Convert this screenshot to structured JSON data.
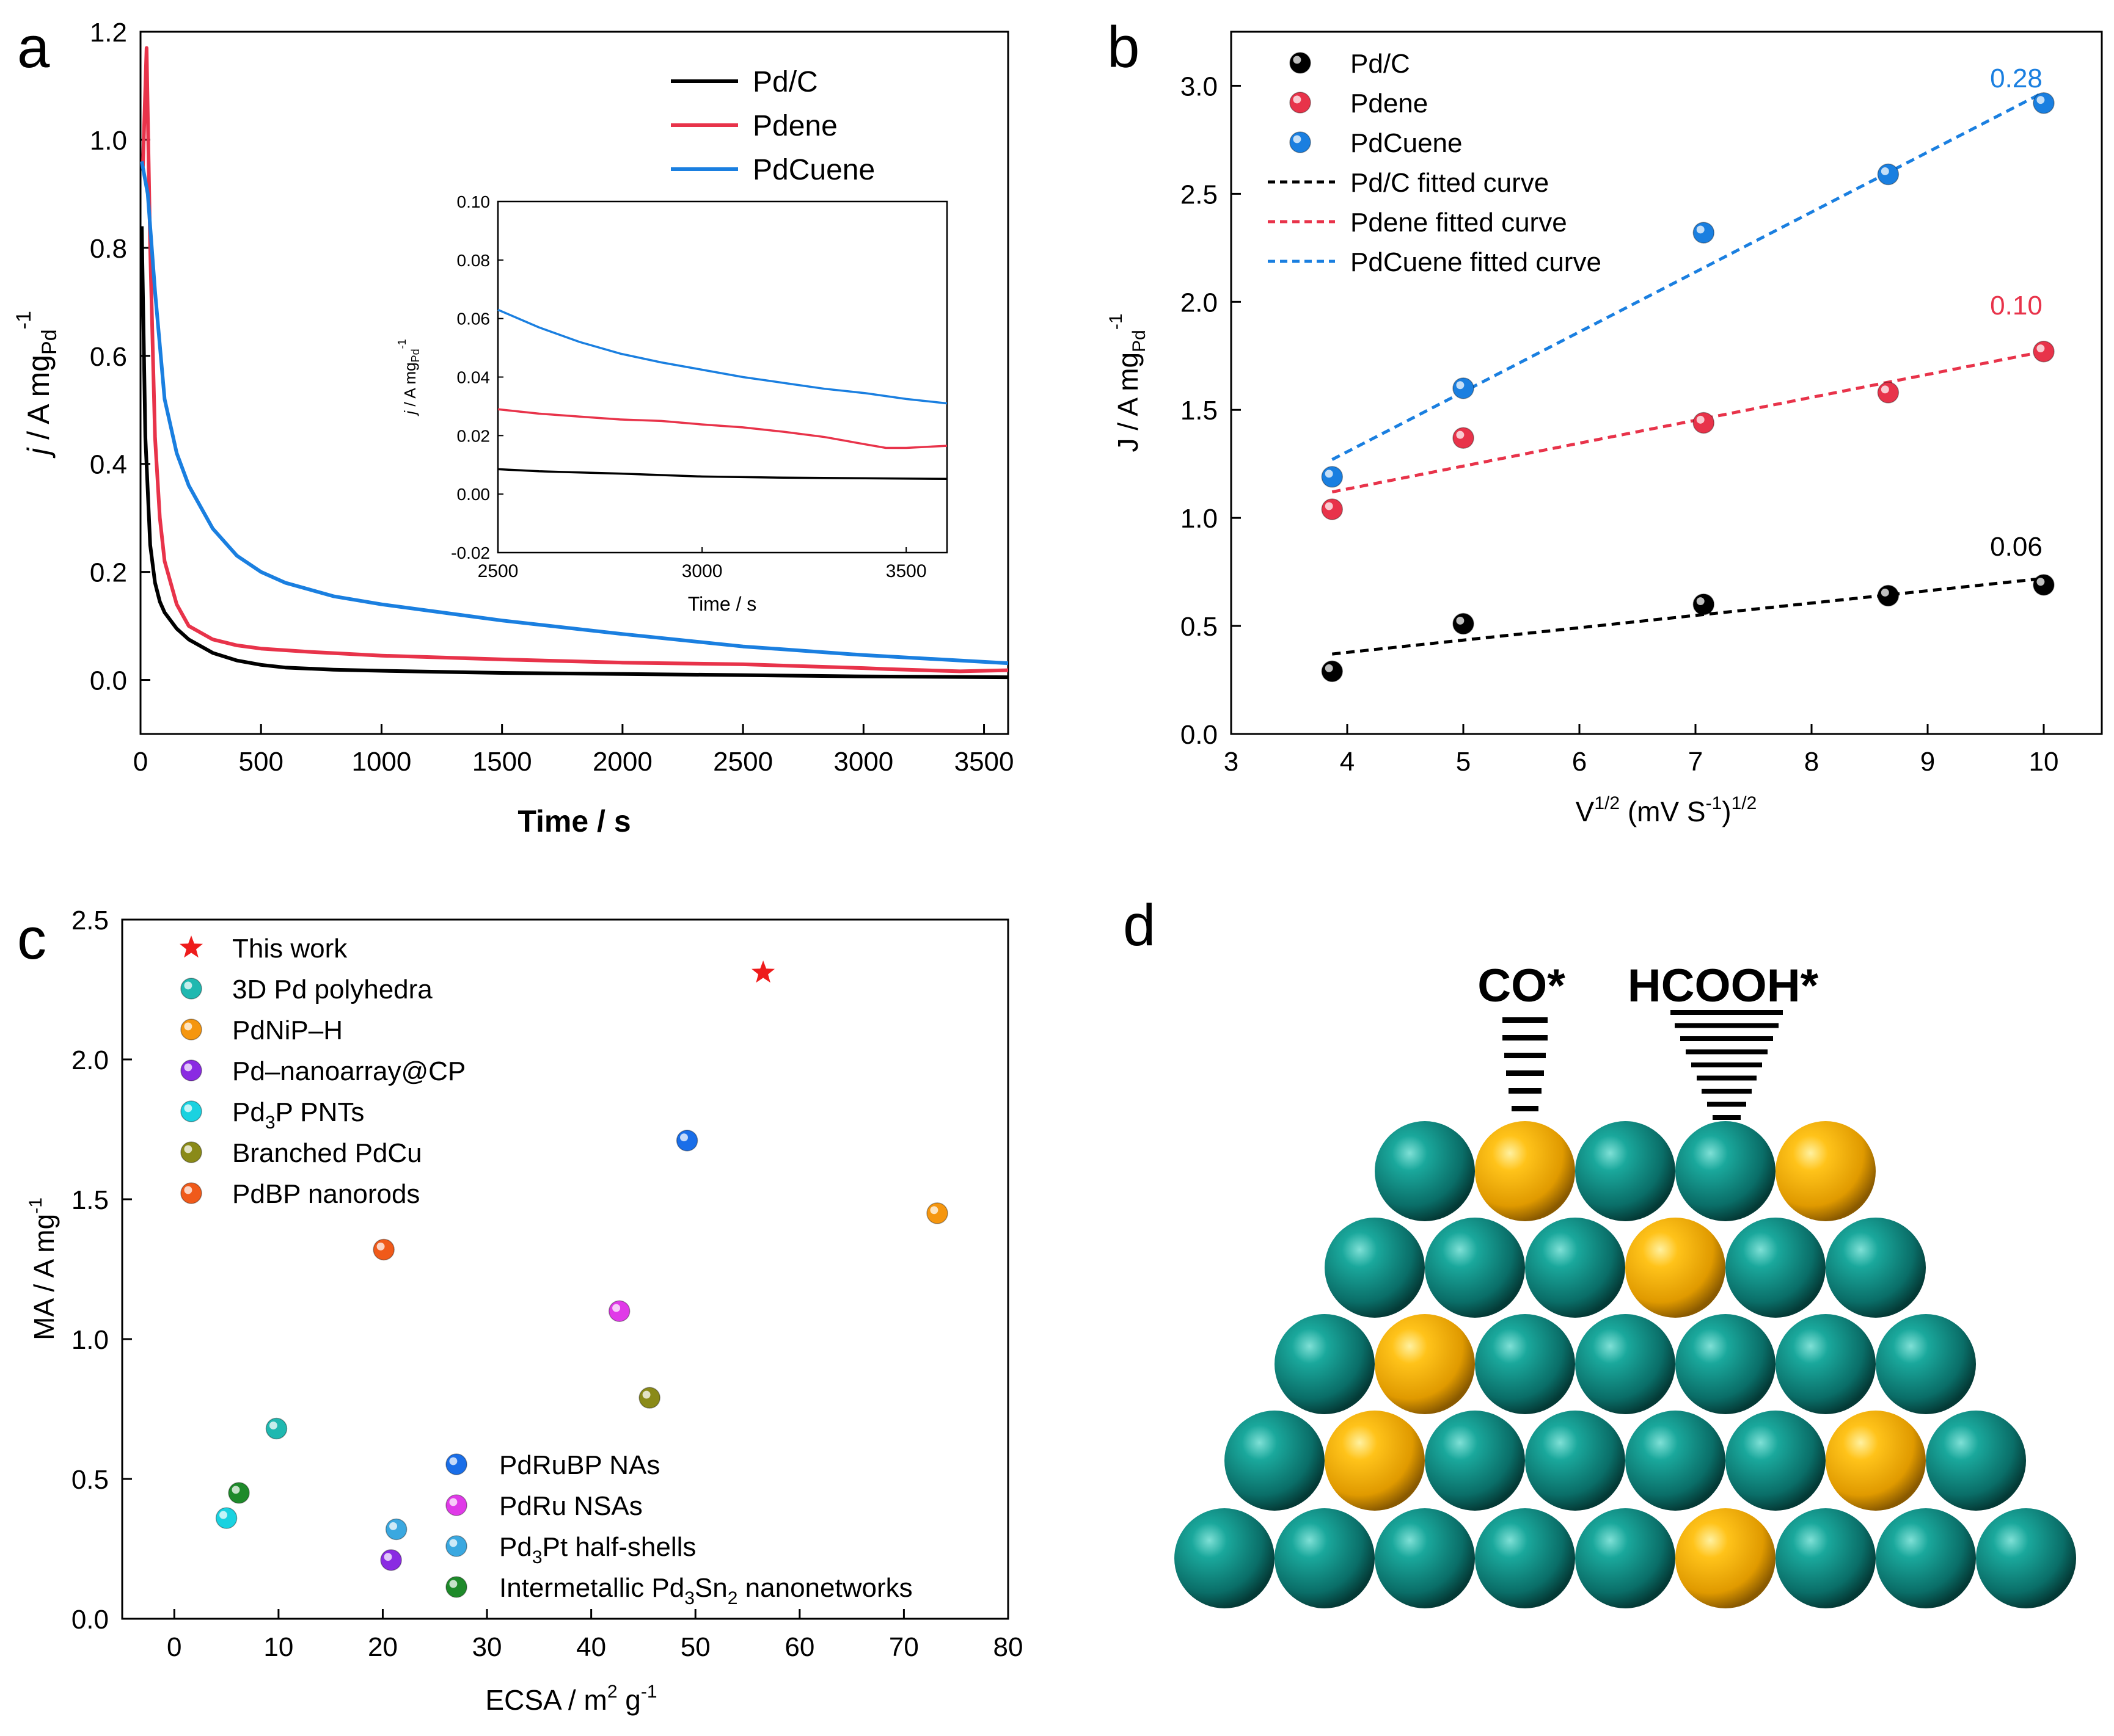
{
  "colors": {
    "black": "#000000",
    "red": "#e8334a",
    "blue": "#1a7fe0",
    "teal": "#0e7f7f",
    "gold": "#f0a800"
  },
  "chart_data": [
    {
      "id": "a",
      "panel_label": "a",
      "type": "line",
      "xlabel": "Time / s",
      "ylabel": {
        "pre": "j",
        "main": " / A mg",
        "sub": "Pd",
        "sup": "-1"
      },
      "xlim": [
        0,
        3600
      ],
      "ylim": [
        -0.1,
        1.2
      ],
      "xticks": [
        0,
        500,
        1000,
        1500,
        2000,
        2500,
        3000,
        3500
      ],
      "yticks": [
        0.0,
        0.2,
        0.4,
        0.6,
        0.8,
        1.0,
        1.2
      ],
      "ytick_labels": [
        "0.0",
        "0.2",
        "0.4",
        "0.6",
        "0.8",
        "1.0",
        "1.2"
      ],
      "legend": {
        "position": "top-right"
      },
      "series": [
        {
          "name": "Pd/C",
          "color": "#000000",
          "x": [
            5,
            20,
            40,
            60,
            80,
            100,
            150,
            200,
            300,
            400,
            500,
            600,
            800,
            1000,
            1500,
            2000,
            2500,
            2800,
            3000,
            3600
          ],
          "y": [
            0.84,
            0.45,
            0.25,
            0.18,
            0.145,
            0.125,
            0.095,
            0.075,
            0.05,
            0.036,
            0.028,
            0.023,
            0.019,
            0.017,
            0.013,
            0.011,
            0.009,
            0.0075,
            0.0065,
            0.005
          ]
        },
        {
          "name": "Pdene",
          "color": "#e8334a",
          "x": [
            10,
            25,
            40,
            60,
            80,
            100,
            150,
            200,
            300,
            400,
            500,
            700,
            1000,
            1500,
            2000,
            2500,
            3000,
            3100,
            3400,
            3600
          ],
          "y": [
            0.95,
            1.17,
            0.8,
            0.45,
            0.3,
            0.22,
            0.14,
            0.1,
            0.075,
            0.064,
            0.058,
            0.052,
            0.045,
            0.038,
            0.032,
            0.029,
            0.022,
            0.02,
            0.016,
            0.018
          ]
        },
        {
          "name": "PdCuene",
          "color": "#1a7fe0",
          "x": [
            5,
            30,
            60,
            100,
            150,
            200,
            250,
            300,
            400,
            500,
            600,
            800,
            1000,
            1500,
            2000,
            2500,
            3000,
            3600
          ],
          "y": [
            0.96,
            0.9,
            0.72,
            0.52,
            0.42,
            0.36,
            0.32,
            0.28,
            0.23,
            0.2,
            0.18,
            0.155,
            0.14,
            0.11,
            0.085,
            0.062,
            0.046,
            0.031
          ]
        }
      ],
      "inset": {
        "xlabel": "Time / s",
        "ylabel": {
          "pre": "j",
          "main": " / A mg",
          "sub": "Pd",
          "sup": "-1"
        },
        "xlim": [
          2500,
          3600
        ],
        "ylim": [
          -0.02,
          0.1
        ],
        "xticks": [
          2500,
          3000,
          3500
        ],
        "yticks": [
          -0.02,
          0.0,
          0.02,
          0.04,
          0.06,
          0.08,
          0.1
        ],
        "ytick_labels": [
          "-0.02",
          "0.00",
          "0.02",
          "0.04",
          "0.06",
          "0.08",
          "0.10"
        ],
        "series": [
          {
            "name": "Pd/C",
            "color": "#000000",
            "x": [
              2500,
              2600,
              2700,
              2800,
              2900,
              3000,
              3200,
              3400,
              3600
            ],
            "y": [
              0.0085,
              0.0078,
              0.0074,
              0.007,
              0.0065,
              0.006,
              0.0056,
              0.0054,
              0.0052
            ]
          },
          {
            "name": "Pdene",
            "color": "#e8334a",
            "x": [
              2500,
              2600,
              2700,
              2800,
              2900,
              3000,
              3100,
              3200,
              3300,
              3400,
              3450,
              3500,
              3600
            ],
            "y": [
              0.029,
              0.0275,
              0.0265,
              0.0255,
              0.025,
              0.0238,
              0.0228,
              0.0213,
              0.0195,
              0.017,
              0.0158,
              0.0158,
              0.0165
            ]
          },
          {
            "name": "PdCuene",
            "color": "#1a7fe0",
            "x": [
              2500,
              2600,
              2700,
              2800,
              2900,
              3000,
              3100,
              3200,
              3300,
              3400,
              3500,
              3600
            ],
            "y": [
              0.063,
              0.057,
              0.052,
              0.048,
              0.045,
              0.0425,
              0.04,
              0.038,
              0.036,
              0.0345,
              0.0325,
              0.031
            ]
          }
        ]
      }
    },
    {
      "id": "b",
      "panel_label": "b",
      "type": "scatter",
      "xlabel": {
        "main": "V",
        "sup": "1/2",
        "mid": " (mV S",
        "sup2": "-1",
        "end": ")",
        "sup3": "1/2"
      },
      "ylabel": {
        "main": "J / A mg",
        "sub": "Pd",
        "sup": "-1"
      },
      "xlim": [
        3,
        10.5
      ],
      "ylim": [
        0,
        3.25
      ],
      "xticks": [
        3,
        4,
        5,
        6,
        7,
        8,
        9,
        10
      ],
      "yticks": [
        0.0,
        0.5,
        1.0,
        1.5,
        2.0,
        2.5,
        3.0
      ],
      "ytick_labels": [
        "0.0",
        "0.5",
        "1.0",
        "1.5",
        "2.0",
        "2.5",
        "3.0"
      ],
      "legend": {
        "position": "top-left"
      },
      "x": [
        3.87,
        5.0,
        7.07,
        8.66,
        10.0
      ],
      "series": [
        {
          "name": "Pd/C",
          "fit_name": "Pd/C fitted curve",
          "color": "#000000",
          "y": [
            0.29,
            0.51,
            0.6,
            0.64,
            0.69
          ],
          "fit": [
            0.37,
            0.72
          ],
          "slope_label": "0.06"
        },
        {
          "name": "Pdene",
          "fit_name": "Pdene fitted curve",
          "color": "#e8334a",
          "y": [
            1.04,
            1.37,
            1.44,
            1.58,
            1.77
          ],
          "fit": [
            1.12,
            1.77
          ],
          "slope_label": "0.10"
        },
        {
          "name": "PdCuene",
          "fit_name": "PdCuene fitted curve",
          "color": "#1a7fe0",
          "y": [
            1.19,
            1.6,
            2.32,
            2.59,
            2.92
          ],
          "fit": [
            1.27,
            2.97
          ],
          "slope_label": "0.28"
        }
      ]
    },
    {
      "id": "c",
      "panel_label": "c",
      "type": "scatter",
      "xlabel": {
        "main": "ECSA / m",
        "sup": "2",
        "end": " g",
        "sup2": "-1"
      },
      "ylabel": {
        "main": "MA / A mg",
        "sup": "-1"
      },
      "xlim": [
        -5,
        80
      ],
      "ylim": [
        0,
        2.5
      ],
      "xticks": [
        0,
        10,
        20,
        30,
        40,
        50,
        60,
        70,
        80
      ],
      "yticks": [
        0.0,
        0.5,
        1.0,
        1.5,
        2.0,
        2.5
      ],
      "ytick_labels": [
        "0.0",
        "0.5",
        "1.0",
        "1.5",
        "2.0",
        "2.5"
      ],
      "legend": {
        "position": "top-left and bottom-center"
      },
      "points": [
        {
          "name": "This work",
          "x": 56.5,
          "y": 2.31,
          "color": "#ee1c1c",
          "marker": "star"
        },
        {
          "name": "3D Pd polyhedra",
          "x": 9.8,
          "y": 0.68,
          "color": "#1fb8b0",
          "marker": "ball"
        },
        {
          "name": "PdNiP–H",
          "x": 73.2,
          "y": 1.45,
          "color": "#f5960f",
          "marker": "ball"
        },
        {
          "name": "Pd–nanoarray@CP",
          "x": 20.8,
          "y": 0.21,
          "color": "#8a2be2",
          "marker": "ball"
        },
        {
          "name": "Pd3P PNTs",
          "x": 5.0,
          "y": 0.36,
          "color": "#1ad2e0",
          "marker": "ball"
        },
        {
          "name": "Branched PdCu",
          "x": 45.6,
          "y": 0.79,
          "color": "#8a8a18",
          "marker": "ball"
        },
        {
          "name": "PdBP nanorods",
          "x": 20.1,
          "y": 1.32,
          "color": "#f05a1a",
          "marker": "ball"
        },
        {
          "name": "PdRuBP NAs",
          "x": 49.2,
          "y": 1.71,
          "color": "#1a6ee8",
          "marker": "ball"
        },
        {
          "name": "PdRu NSAs",
          "x": 42.7,
          "y": 1.1,
          "color": "#e03ae8",
          "marker": "ball"
        },
        {
          "name": "Pd3Pt half-shells",
          "x": 21.3,
          "y": 0.32,
          "color": "#3aa8e0",
          "marker": "ball"
        },
        {
          "name": "Intermetallic Pd3Sn2 nanonetworks",
          "x": 6.2,
          "y": 0.45,
          "color": "#1e8a2a",
          "marker": "ball"
        }
      ],
      "legend_entries": [
        {
          "text": "This work",
          "parts": [
            [
              "This work",
              ""
            ]
          ]
        },
        {
          "text": "3D Pd polyhedra",
          "parts": [
            [
              "3D Pd polyhedra",
              ""
            ]
          ]
        },
        {
          "text": "PdNiP–H",
          "parts": [
            [
              "PdNiP",
              ""
            ],
            [
              "–",
              ""
            ],
            [
              "H",
              ""
            ]
          ]
        },
        {
          "text": "Pd–nanoarray@CP",
          "parts": [
            [
              "Pd",
              ""
            ],
            [
              "–",
              ""
            ],
            [
              "nanoarray@CP",
              ""
            ]
          ]
        },
        {
          "text": "Pd3P PNTs",
          "parts": [
            [
              "Pd",
              ""
            ],
            [
              "3",
              "sub"
            ],
            [
              "P PNTs",
              ""
            ]
          ]
        },
        {
          "text": "Branched PdCu",
          "parts": [
            [
              "Branched PdCu",
              ""
            ]
          ]
        },
        {
          "text": "PdBP nanorods",
          "parts": [
            [
              "PdBP nanorods",
              ""
            ]
          ]
        },
        {
          "text": "PdRuBP NAs",
          "parts": [
            [
              "PdRuBP NAs",
              ""
            ]
          ]
        },
        {
          "text": "PdRu NSAs",
          "parts": [
            [
              "PdRu NSAs",
              ""
            ]
          ]
        },
        {
          "text": "Pd3Pt half-shells",
          "parts": [
            [
              "Pd",
              ""
            ],
            [
              "3",
              "sub"
            ],
            [
              "Pt half-shells",
              ""
            ]
          ]
        },
        {
          "text": "Intermetallic Pd3Sn2 nanonetworks",
          "parts": [
            [
              "Intermetallic Pd",
              ""
            ],
            [
              "3",
              "sub"
            ],
            [
              "Sn",
              ""
            ],
            [
              "2",
              "sub"
            ],
            [
              " nanonetworks",
              ""
            ]
          ]
        }
      ]
    }
  ],
  "panel_d": {
    "panel_label": "d",
    "label_co": "CO*",
    "label_hcooh": "HCOOH*",
    "rows": [
      [
        "teal",
        "gold",
        "teal",
        "teal",
        "gold"
      ],
      [
        "teal",
        "teal",
        "teal",
        "gold",
        "teal",
        "teal"
      ],
      [
        "teal",
        "gold",
        "teal",
        "teal",
        "teal",
        "teal",
        "teal"
      ],
      [
        "teal",
        "gold",
        "teal",
        "teal",
        "teal",
        "teal",
        "gold",
        "teal"
      ],
      [
        "teal",
        "teal",
        "teal",
        "teal",
        "teal",
        "gold",
        "teal",
        "teal",
        "teal"
      ]
    ]
  }
}
